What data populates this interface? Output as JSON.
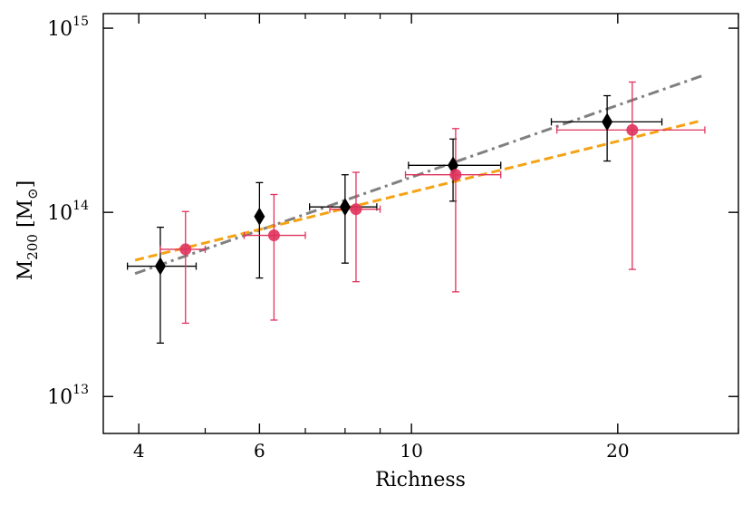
{
  "chart_data": {
    "type": "scatter",
    "title": "",
    "xlabel": "Richness",
    "ylabel": {
      "main": "M",
      "sub": "200",
      "unit_open": " [M",
      "unit_sub": "⊙",
      "unit_close": "]"
    },
    "xscale": "log",
    "yscale": "log",
    "xlim": [
      3.55,
      30.0
    ],
    "ylim": [
      6300000000000.0,
      1200000000000000.0
    ],
    "xticks": [
      {
        "value": 4,
        "label": "4"
      },
      {
        "value": 6,
        "label": "6"
      },
      {
        "value": 10,
        "label": "10"
      },
      {
        "value": 20,
        "label": "20"
      }
    ],
    "xminor": [
      5,
      7,
      8,
      9,
      30
    ],
    "yticks": [
      {
        "value": 10000000000000.0,
        "base": "10",
        "exp": "13"
      },
      {
        "value": 100000000000000.0,
        "base": "10",
        "exp": "14"
      },
      {
        "value": 1000000000000000.0,
        "base": "10",
        "exp": "15"
      }
    ],
    "series": [
      {
        "name": "Black diamonds",
        "marker": "diamond",
        "color": "#000000",
        "points": [
          {
            "x": 4.3,
            "y": 51000000000000.0,
            "xerr": [
              3.85,
              4.85
            ],
            "yerr": [
              19500000000000.0,
              83000000000000.0
            ]
          },
          {
            "x": 6.0,
            "y": 95000000000000.0,
            "xerr": [
              6.0,
              6.0
            ],
            "yerr": [
              44000000000000.0,
              145000000000000.0
            ]
          },
          {
            "x": 8.0,
            "y": 107000000000000.0,
            "xerr": [
              7.1,
              8.9
            ],
            "yerr": [
              53000000000000.0,
              160000000000000.0
            ]
          },
          {
            "x": 11.5,
            "y": 180000000000000.0,
            "xerr": [
              9.9,
              13.5
            ],
            "yerr": [
              115000000000000.0,
              250000000000000.0
            ]
          },
          {
            "x": 19.3,
            "y": 310000000000000.0,
            "xerr": [
              16.0,
              23.2
            ],
            "yerr": [
              190000000000000.0,
              430000000000000.0
            ]
          }
        ]
      },
      {
        "name": "Crimson circles",
        "marker": "circle",
        "color": "#e0325c",
        "points": [
          {
            "x": 4.68,
            "y": 63000000000000.0,
            "xerr": [
              4.3,
              5.0
            ],
            "yerr": [
              25000000000000.0,
              101000000000000.0
            ]
          },
          {
            "x": 6.3,
            "y": 75000000000000.0,
            "xerr": [
              5.7,
              7.0
            ],
            "yerr": [
              26000000000000.0,
              125000000000000.0
            ]
          },
          {
            "x": 8.3,
            "y": 104000000000000.0,
            "xerr": [
              7.6,
              9.0
            ],
            "yerr": [
              42000000000000.0,
              165000000000000.0
            ]
          },
          {
            "x": 11.6,
            "y": 160000000000000.0,
            "xerr": [
              9.8,
              13.5
            ],
            "yerr": [
              37000000000000.0,
              285000000000000.0
            ]
          },
          {
            "x": 21.0,
            "y": 280000000000000.0,
            "xerr": [
              16.3,
              26.8
            ],
            "yerr": [
              49000000000000.0,
              510000000000000.0
            ]
          }
        ]
      }
    ],
    "fits": [
      {
        "name": "gray dash-dot fit",
        "color": "#808080",
        "style": "dashdot",
        "x": [
          3.95,
          26.5
        ],
        "y": [
          46500000000000.0,
          550000000000000.0
        ]
      },
      {
        "name": "orange dashed fit",
        "color": "#f5a314",
        "style": "dashed",
        "x": [
          3.95,
          26.5
        ],
        "y": [
          55000000000000.0,
          315000000000000.0
        ]
      }
    ]
  }
}
